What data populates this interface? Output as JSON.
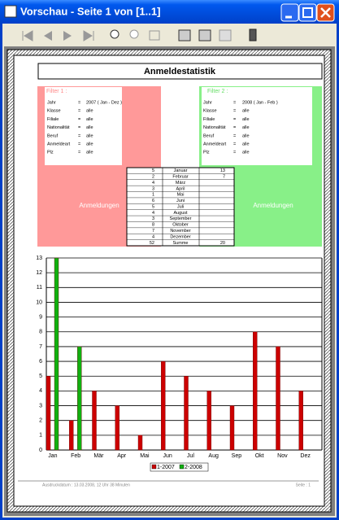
{
  "window": {
    "title": "Vorschau - Seite 1 von [1..1]"
  },
  "report": {
    "title": "Anmeldestatistik",
    "filters": [
      {
        "title": "Filter 1 :",
        "label": "Anmeldungen",
        "rows": [
          [
            "Jahr",
            "=",
            "2007 ( Jan - Dez )"
          ],
          [
            "Klasse",
            "=",
            "alle"
          ],
          [
            "Filiale",
            "=",
            "alle"
          ],
          [
            "Nationalität",
            "=",
            "alle"
          ],
          [
            "Beruf",
            "=",
            "alle"
          ],
          [
            "Anmeldeart",
            "=",
            "alle"
          ],
          [
            "Plz",
            "=",
            "alle"
          ]
        ]
      },
      {
        "title": "Filter 2 :",
        "label": "Anmeldungen",
        "rows": [
          [
            "Jahr",
            "=",
            "2008 ( Jan - Feb )"
          ],
          [
            "Klasse",
            "=",
            "alle"
          ],
          [
            "Filiale",
            "=",
            "alle"
          ],
          [
            "Nationalität",
            "=",
            "alle"
          ],
          [
            "Beruf",
            "=",
            "alle"
          ],
          [
            "Anmeldeart",
            "=",
            "alle"
          ],
          [
            "Plz",
            "=",
            "alle"
          ]
        ]
      }
    ],
    "table": {
      "rows": [
        [
          5,
          "Januar",
          13
        ],
        [
          2,
          "Februar",
          7
        ],
        [
          4,
          "März",
          null
        ],
        [
          3,
          "April",
          null
        ],
        [
          1,
          "Mai",
          null
        ],
        [
          6,
          "Juni",
          null
        ],
        [
          5,
          "Juli",
          null
        ],
        [
          4,
          "August",
          null
        ],
        [
          3,
          "September",
          null
        ],
        [
          8,
          "Oktober",
          null
        ],
        [
          7,
          "November",
          null
        ],
        [
          4,
          "Dezember",
          null
        ],
        [
          52,
          "Summe",
          20
        ]
      ]
    },
    "footer": {
      "left": "Ausdruckdatum : 13.03.2008, 12 Uhr 38 Minuten",
      "right": "Seite : 1"
    }
  },
  "chart_data": {
    "type": "bar",
    "categories": [
      "Jan",
      "Feb",
      "Mär",
      "Apr",
      "Mai",
      "Jun",
      "Jul",
      "Aug",
      "Sep",
      "Okt",
      "Nov",
      "Dez"
    ],
    "series": [
      {
        "name": "1-2007",
        "color": "#cc0000",
        "values": [
          5,
          2,
          4,
          3,
          1,
          6,
          5,
          4,
          3,
          8,
          7,
          4
        ]
      },
      {
        "name": "2-2008",
        "color": "#10b010",
        "values": [
          13,
          7,
          null,
          null,
          null,
          null,
          null,
          null,
          null,
          null,
          null,
          null
        ]
      }
    ],
    "ylim": [
      0,
      13
    ],
    "yticks": [
      0,
      1,
      2,
      3,
      4,
      5,
      6,
      7,
      8,
      9,
      10,
      11,
      12,
      13
    ],
    "grid": true,
    "legend": "bottom"
  }
}
